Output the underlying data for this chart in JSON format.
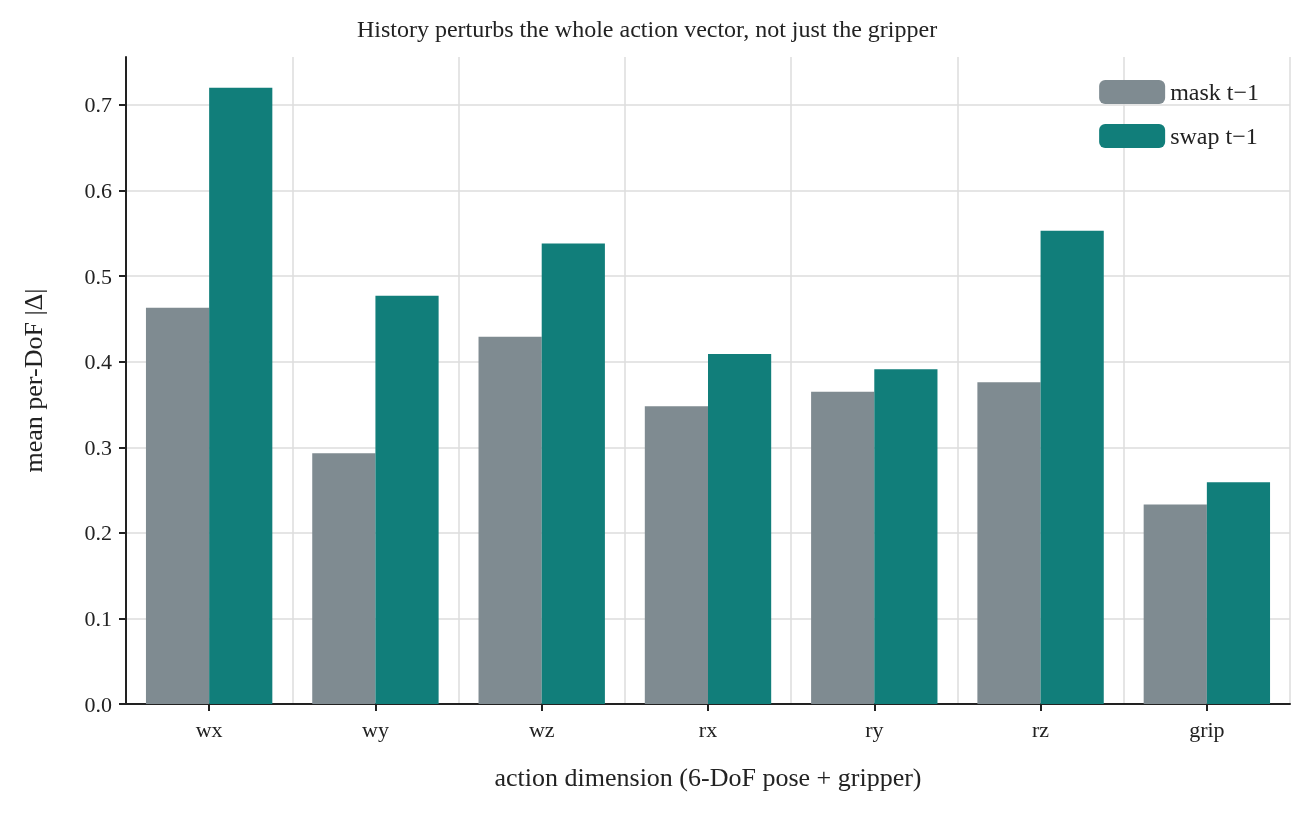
{
  "chart_data": {
    "type": "bar",
    "title": "History perturbs the whole action vector, not just the gripper",
    "xlabel": "action dimension (6-DoF pose + gripper)",
    "ylabel": "mean per-DoF |Δ|",
    "categories": [
      "wx",
      "wy",
      "wz",
      "rx",
      "ry",
      "rz",
      "grip"
    ],
    "series": [
      {
        "name": "mask t−1",
        "color": "#7f8b91",
        "values": [
          0.463,
          0.293,
          0.429,
          0.348,
          0.365,
          0.376,
          0.233
        ]
      },
      {
        "name": "swap t−1",
        "color": "#117e7a",
        "values": [
          0.72,
          0.477,
          0.538,
          0.409,
          0.391,
          0.553,
          0.259
        ]
      }
    ],
    "ylim": [
      0,
      0.756
    ],
    "yticks": [
      {
        "value": 0,
        "label": "0.0"
      },
      0.1,
      0.2,
      0.3,
      0.4,
      0.5,
      0.6,
      0.7
    ],
    "grid": true,
    "legend": "top right"
  }
}
